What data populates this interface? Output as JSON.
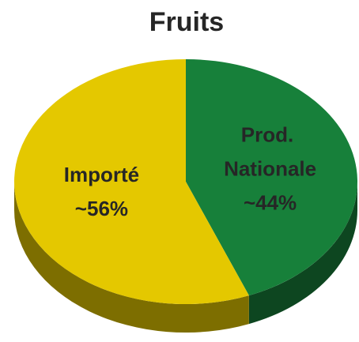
{
  "chart_data": {
    "type": "pie",
    "title": "Fruits",
    "categories": [
      "Prod. Nationale",
      "Importé"
    ],
    "values": [
      44,
      56
    ],
    "value_labels": [
      "~44%",
      "~56%"
    ],
    "colors": [
      "#17803a",
      "#e4c800"
    ]
  }
}
